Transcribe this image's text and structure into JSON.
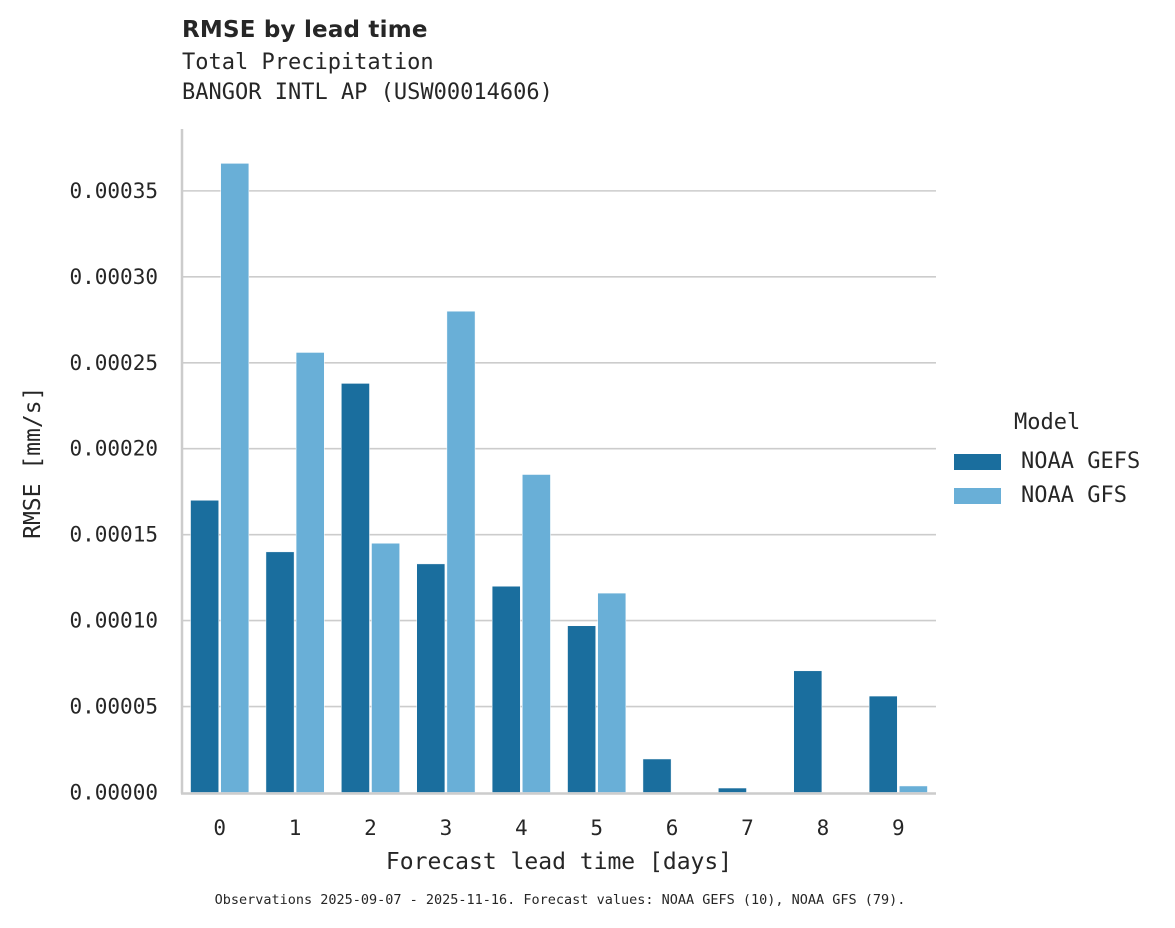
{
  "header": {
    "title": "RMSE by lead time",
    "subtitle_line1": "Total Precipitation",
    "subtitle_line2": "BANGOR INTL AP (USW00014606)"
  },
  "legend": {
    "title": "Model",
    "items": [
      {
        "label": "NOAA GEFS",
        "color": "#1a6e9e"
      },
      {
        "label": "NOAA GFS",
        "color": "#69afd7"
      }
    ]
  },
  "footnote": "Observations 2025-09-07 - 2025-11-16. Forecast values: NOAA GEFS (10), NOAA GFS (79).",
  "chart_data": {
    "type": "bar",
    "title": "RMSE by lead time",
    "subtitle": "Total Precipitation — BANGOR INTL AP (USW00014606)",
    "xlabel": "Forecast lead time [days]",
    "ylabel": "RMSE [mm/s]",
    "categories": [
      "0",
      "1",
      "2",
      "3",
      "4",
      "5",
      "6",
      "7",
      "8",
      "9"
    ],
    "series": [
      {
        "name": "NOAA GEFS",
        "color": "#1a6e9e",
        "values": [
          0.00017,
          0.00014,
          0.000238,
          0.000133,
          0.00012,
          9.7e-05,
          1.95e-05,
          2.6e-06,
          7.08e-05,
          5.61e-05
        ]
      },
      {
        "name": "NOAA GFS",
        "color": "#69afd7",
        "values": [
          0.000366,
          0.000256,
          0.000145,
          0.00028,
          0.000185,
          0.000116,
          0.0,
          0.0,
          0.0,
          3.8e-06
        ]
      }
    ],
    "yticks": [
      0.0,
      5e-05,
      0.0001,
      0.00015,
      0.0002,
      0.00025,
      0.0003,
      0.00035
    ],
    "ytick_labels": [
      "0.00000",
      "0.00005",
      "0.00010",
      "0.00015",
      "0.00020",
      "0.00025",
      "0.00030",
      "0.00035"
    ],
    "ylim": [
      0,
      0.000386
    ],
    "grid": "horizontal",
    "legend_position": "right"
  }
}
